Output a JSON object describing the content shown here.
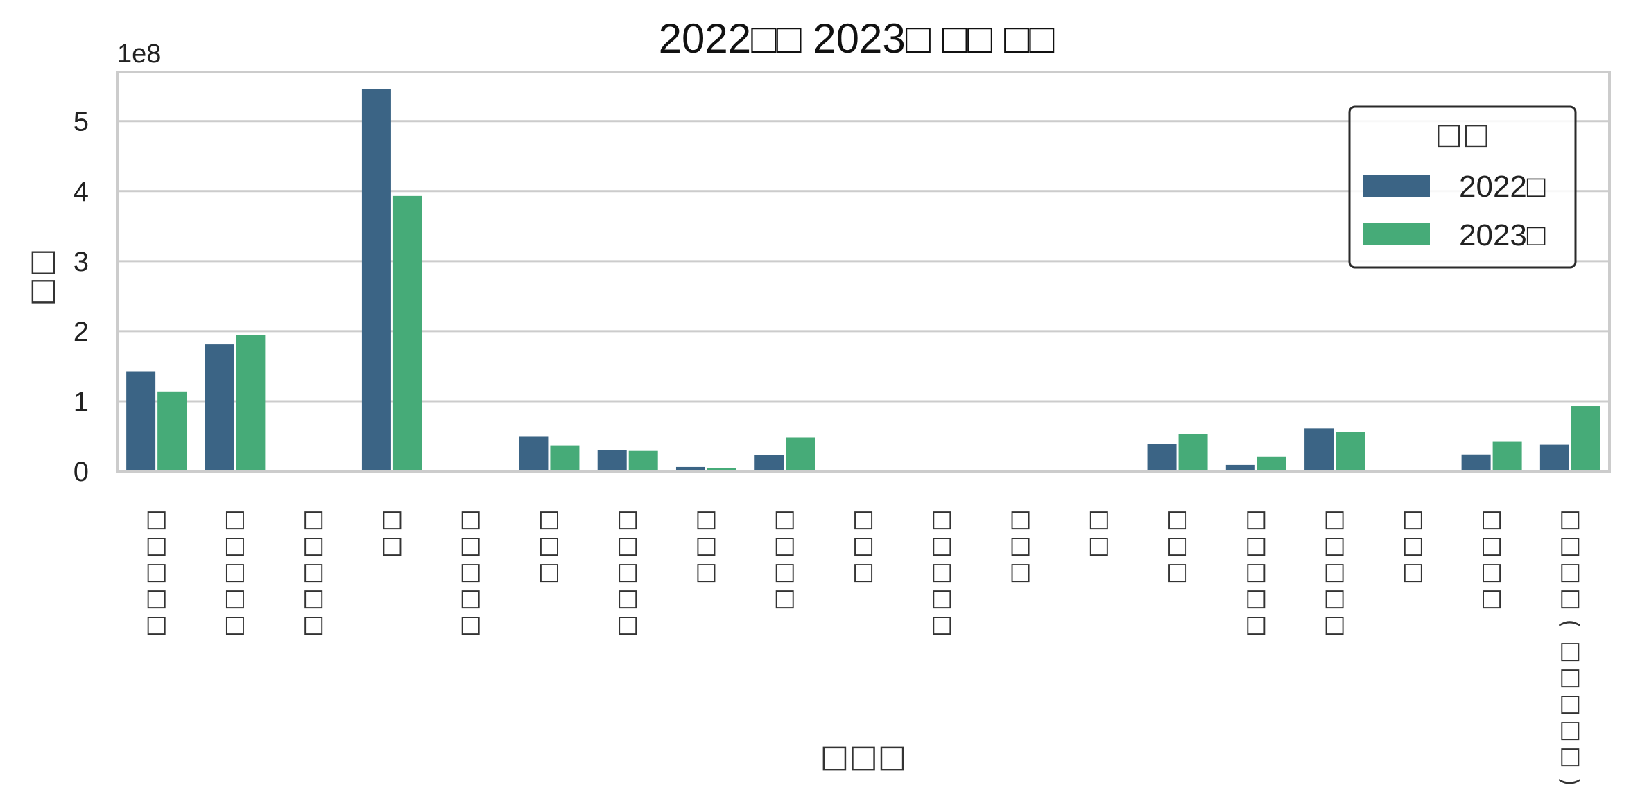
{
  "chart_data": {
    "type": "bar",
    "title": "2022□□ 2023□ □□ □□",
    "xlabel": "□□□",
    "ylabel": "□□",
    "y_offset_label": "1e8",
    "y_scale": 100000000,
    "ylim": [
      0,
      5.7
    ],
    "y_ticks": [
      0,
      1,
      2,
      3,
      4,
      5
    ],
    "y_tick_labels": [
      "0",
      "1",
      "2",
      "3",
      "4",
      "5"
    ],
    "grid": true,
    "legend": {
      "title": "□□",
      "position": "top-right"
    },
    "categories": [
      "□□□□□",
      "□□□□□",
      "□□□□□",
      "□□",
      "□□□□□",
      "□□□",
      "□□□□□",
      "□□□",
      "□□□□",
      "□□□",
      "□□□□□",
      "□□□",
      "□□",
      "□□□",
      "□□□□□",
      "□□□□□",
      "□□□",
      "□□□□",
      "□□□□(□□□□□)"
    ],
    "series": [
      {
        "name": "2022□",
        "color": "#3b6485",
        "values": [
          1.42,
          1.81,
          0,
          5.46,
          0,
          0.5,
          0.3,
          0.06,
          0.23,
          0,
          0,
          0,
          0,
          0.39,
          0.09,
          0.61,
          0,
          0.24,
          0.38
        ]
      },
      {
        "name": "2023□",
        "color": "#46ab78",
        "values": [
          1.14,
          1.94,
          0,
          3.93,
          0,
          0.37,
          0.29,
          0.04,
          0.48,
          0,
          0,
          0,
          0,
          0.53,
          0.21,
          0.56,
          0,
          0.42,
          0.93
        ]
      }
    ]
  }
}
